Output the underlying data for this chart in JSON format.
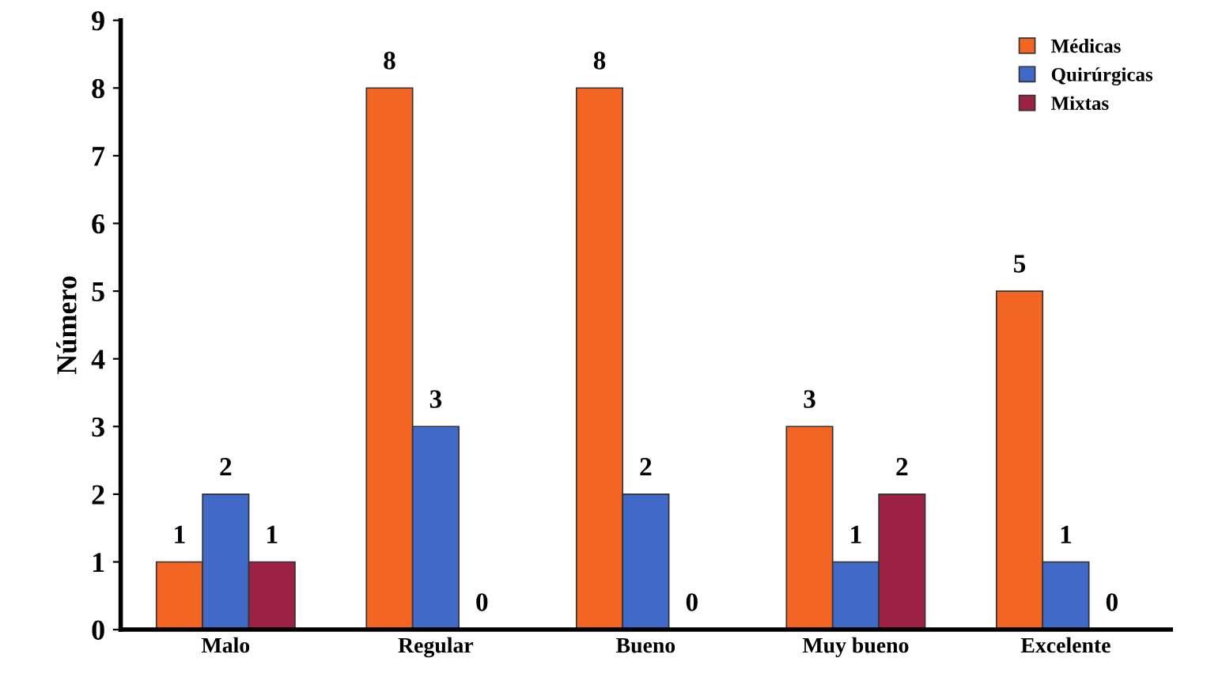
{
  "chart_data": {
    "type": "bar",
    "ylabel": "Número",
    "categories": [
      "Malo",
      "Regular",
      "Bueno",
      "Muy bueno",
      "Excelente"
    ],
    "series": [
      {
        "name": "Médicas",
        "color": "#f26522",
        "values": [
          1,
          8,
          8,
          3,
          5
        ]
      },
      {
        "name": "Quirúrgicas",
        "color": "#4169c8",
        "values": [
          2,
          3,
          2,
          1,
          1
        ]
      },
      {
        "name": "Mixtas",
        "color": "#9b2242",
        "values": [
          1,
          0,
          0,
          2,
          0
        ]
      }
    ],
    "ylim": [
      0,
      9
    ],
    "yticks": [
      0,
      1,
      2,
      3,
      4,
      5,
      6,
      7,
      8,
      9
    ],
    "grid": false,
    "legend": "top right",
    "data_labels": true
  }
}
